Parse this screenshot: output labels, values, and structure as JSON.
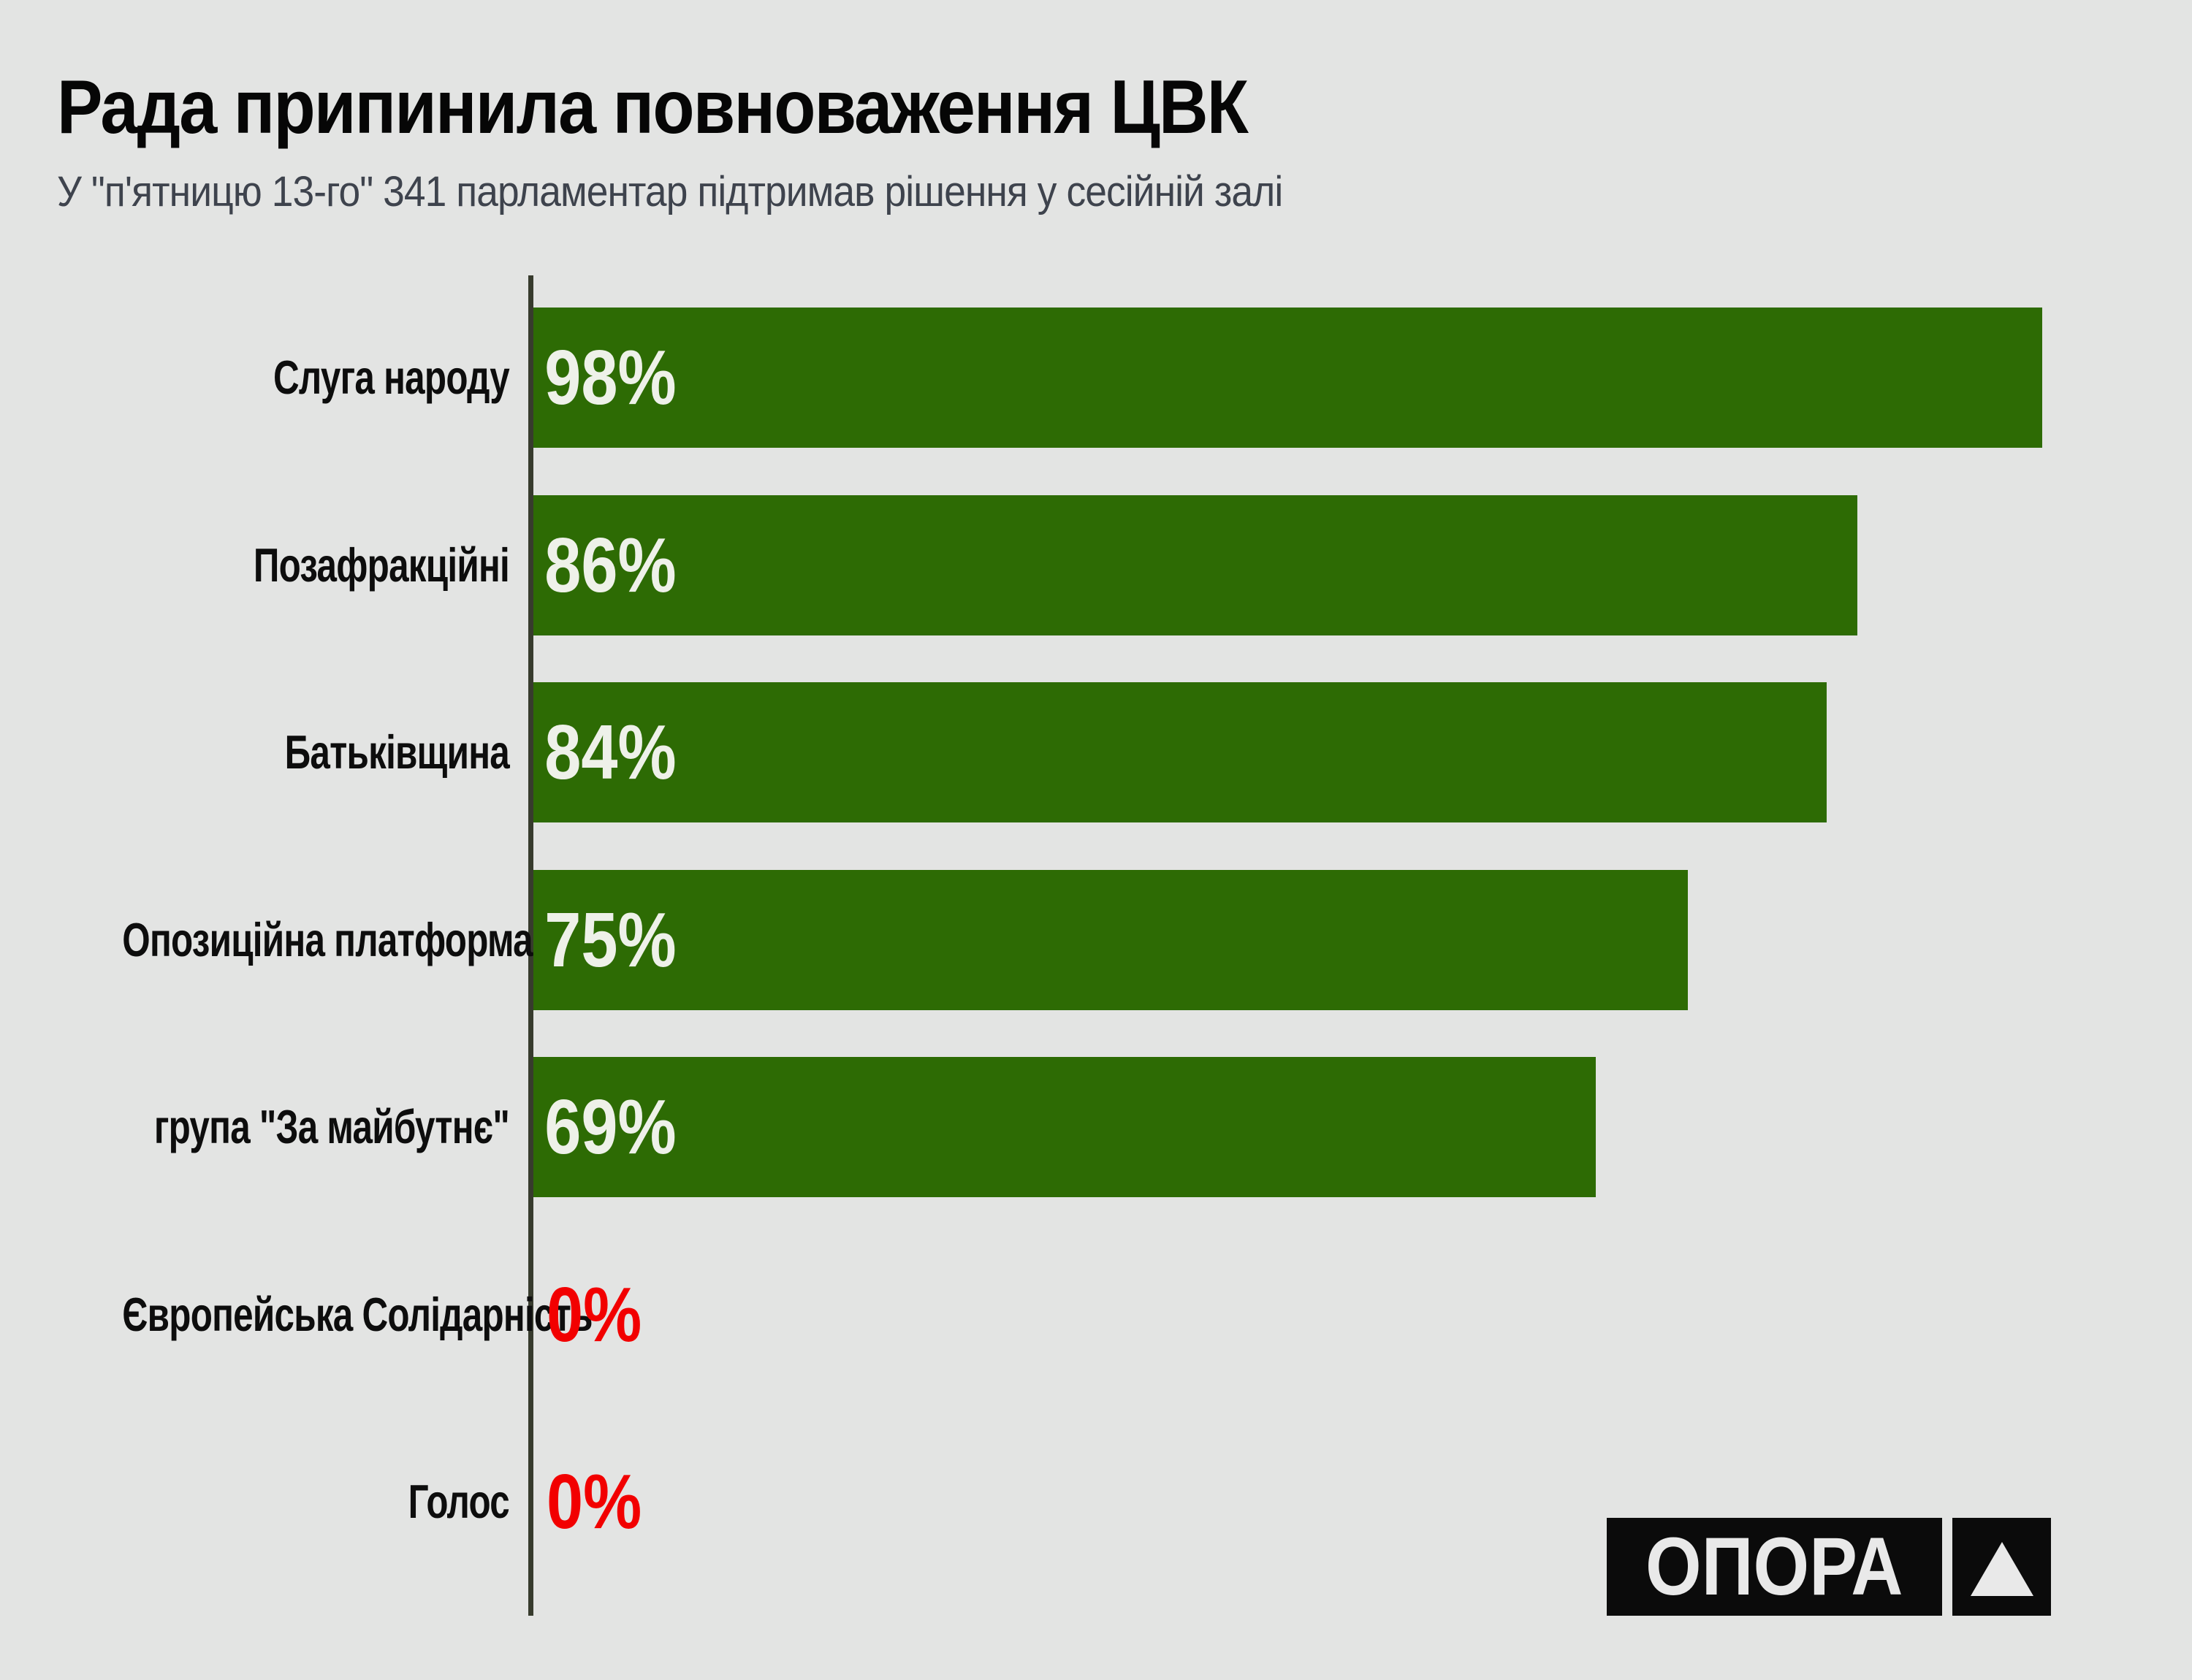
{
  "title": "Рада припинила повноваження ЦВК",
  "subtitle": "У \"п'ятницю 13-го\" 341 парламентар підтримав рішення у сесійній залі",
  "logo": {
    "wordmark": "ОПОРА",
    "mark": "triangle-up"
  },
  "colors": {
    "background": "#e3e4e3",
    "bar": "#2d6b04",
    "bar_value_label": "#eef1e9",
    "zero_value_label": "#f20000",
    "axis_line": "#373b2d",
    "title": "#060606",
    "subtitle": "#3e434d",
    "category_label": "#0d0d0d",
    "logo_background": "#0b0b0b",
    "logo_foreground": "#e9e9e9"
  },
  "chart_data": {
    "type": "bar",
    "orientation": "horizontal",
    "title": "Рада припинила повноваження ЦВК",
    "subtitle": "У \"п'ятницю 13-го\" 341 парламентар підтримав рішення у сесійній залі",
    "categories": [
      "Слуга народу",
      "Позафракційні",
      "Батьківщина",
      "Опозиційна платформа",
      "група \"За майбутнє\"",
      "Європейська Солідарність",
      "Голос"
    ],
    "values": [
      98,
      86,
      84,
      75,
      69,
      0,
      0
    ],
    "value_labels": [
      "98%",
      "86%",
      "84%",
      "75%",
      "69%",
      "0%",
      "0%"
    ],
    "xlim": [
      0,
      100
    ],
    "grid": false,
    "legend": false,
    "value_label_position": "inside-left",
    "zero_values_highlighted": true
  }
}
